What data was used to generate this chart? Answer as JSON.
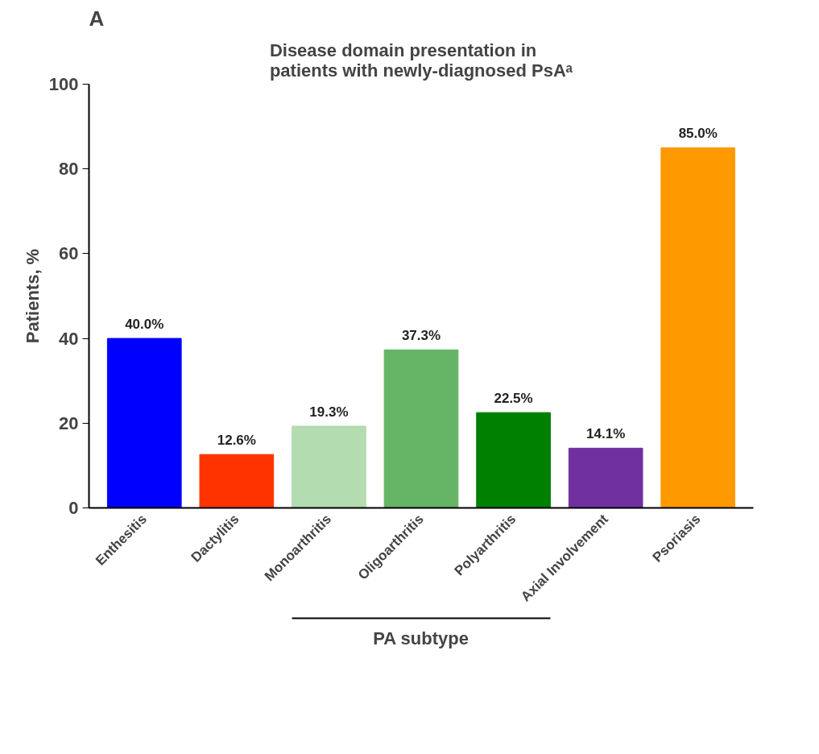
{
  "chart_data": {
    "type": "bar",
    "title": "Disease domain presentation in\npatients with newly-diagnosed PsAᵃ",
    "ylabel": "Patients, %",
    "categories": [
      "Enthesitis",
      "Dactylitis",
      "Monoarthritis",
      "Oligoarthritis",
      "Polyarthritis",
      "Axial Involvement",
      "Psoriasis"
    ],
    "values": [
      40.0,
      12.6,
      19.3,
      37.3,
      22.5,
      14.1,
      85.0
    ],
    "colors": [
      "#0000ff",
      "#ff3300",
      "#b3dcb0",
      "#66b466",
      "#008000",
      "#7030a0",
      "#ff9900"
    ],
    "value_labels": [
      "40.0%",
      "12.6%",
      "19.3%",
      "37.3%",
      "22.5%",
      "14.1%",
      "85.0%"
    ],
    "ylim": [
      0,
      100
    ],
    "yticks": [
      0,
      20,
      40,
      60,
      80,
      100
    ],
    "grid": false,
    "annotations": [
      "A",
      "PA subtype"
    ]
  }
}
